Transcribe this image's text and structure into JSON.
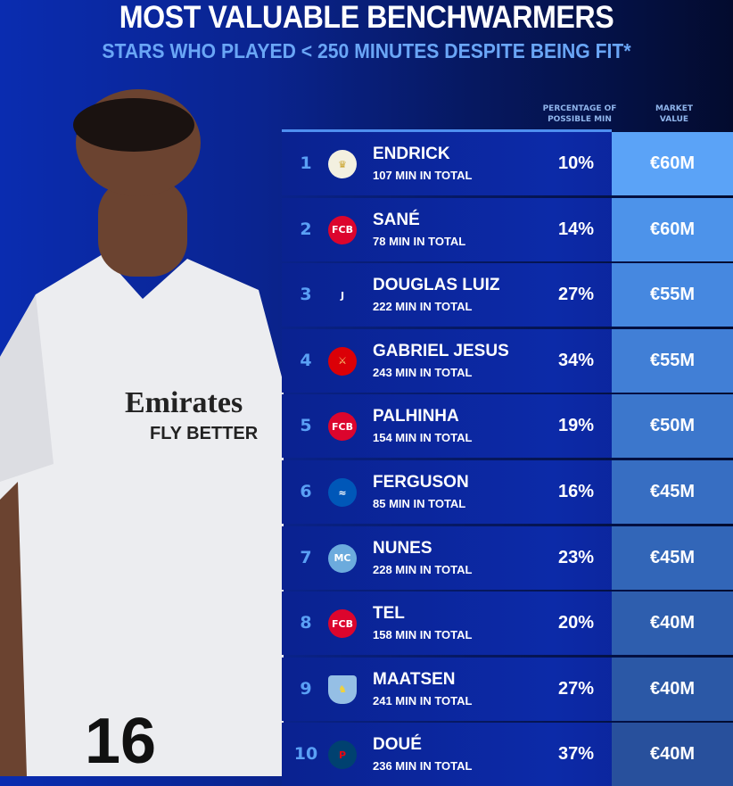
{
  "header": {
    "title": "MOST VALUABLE BENCHWARMERS",
    "subtitle": "STARS WHO PLAYED < 250 MINUTES DESPITE BEING FIT*"
  },
  "columns": {
    "percentage": "PERCENTAGE OF POSSIBLE MIN",
    "value": "MARKET VALUE"
  },
  "photo": {
    "shirt_sponsor": "Emirates",
    "shirt_slogan": "FLY BETTER",
    "shirt_number": "16"
  },
  "rows": [
    {
      "rank": "1",
      "name": "ENDRICK",
      "minutes": "107 MIN IN TOTAL",
      "pct": "10%",
      "value": "€60M",
      "club_icon": "real-madrid-crest",
      "value_color": "#5ba3f7"
    },
    {
      "rank": "2",
      "name": "SANÉ",
      "minutes": "78 MIN IN TOTAL",
      "pct": "14%",
      "value": "€60M",
      "club_icon": "bayern-crest",
      "value_color": "#4d93ea"
    },
    {
      "rank": "3",
      "name": "DOUGLAS LUIZ",
      "minutes": "222 MIN IN TOTAL",
      "pct": "27%",
      "value": "€55M",
      "club_icon": "juventus-crest",
      "value_color": "#4688e0"
    },
    {
      "rank": "4",
      "name": "GABRIEL JESUS",
      "minutes": "243 MIN IN TOTAL",
      "pct": "34%",
      "value": "€55M",
      "club_icon": "arsenal-crest",
      "value_color": "#417fd6"
    },
    {
      "rank": "5",
      "name": "PALHINHA",
      "minutes": "154 MIN IN TOTAL",
      "pct": "19%",
      "value": "€50M",
      "club_icon": "bayern-crest",
      "value_color": "#3c77cc"
    },
    {
      "rank": "6",
      "name": "FERGUSON",
      "minutes": "85 MIN IN TOTAL",
      "pct": "16%",
      "value": "€45M",
      "club_icon": "brighton-crest",
      "value_color": "#376ec2"
    },
    {
      "rank": "7",
      "name": "NUNES",
      "minutes": "228 MIN IN TOTAL",
      "pct": "23%",
      "value": "€45M",
      "club_icon": "man-city-crest",
      "value_color": "#3266b8"
    },
    {
      "rank": "8",
      "name": "TEL",
      "minutes": "158 MIN IN TOTAL",
      "pct": "20%",
      "value": "€40M",
      "club_icon": "bayern-crest",
      "value_color": "#2e5eae"
    },
    {
      "rank": "9",
      "name": "MAATSEN",
      "minutes": "241 MIN IN TOTAL",
      "pct": "27%",
      "value": "€40M",
      "club_icon": "aston-villa-crest",
      "value_color": "#2b58a6"
    },
    {
      "rank": "10",
      "name": "DOUÉ",
      "minutes": "236 MIN IN TOTAL",
      "pct": "37%",
      "value": "€40M",
      "club_icon": "psg-crest",
      "value_color": "#28509c"
    }
  ]
}
